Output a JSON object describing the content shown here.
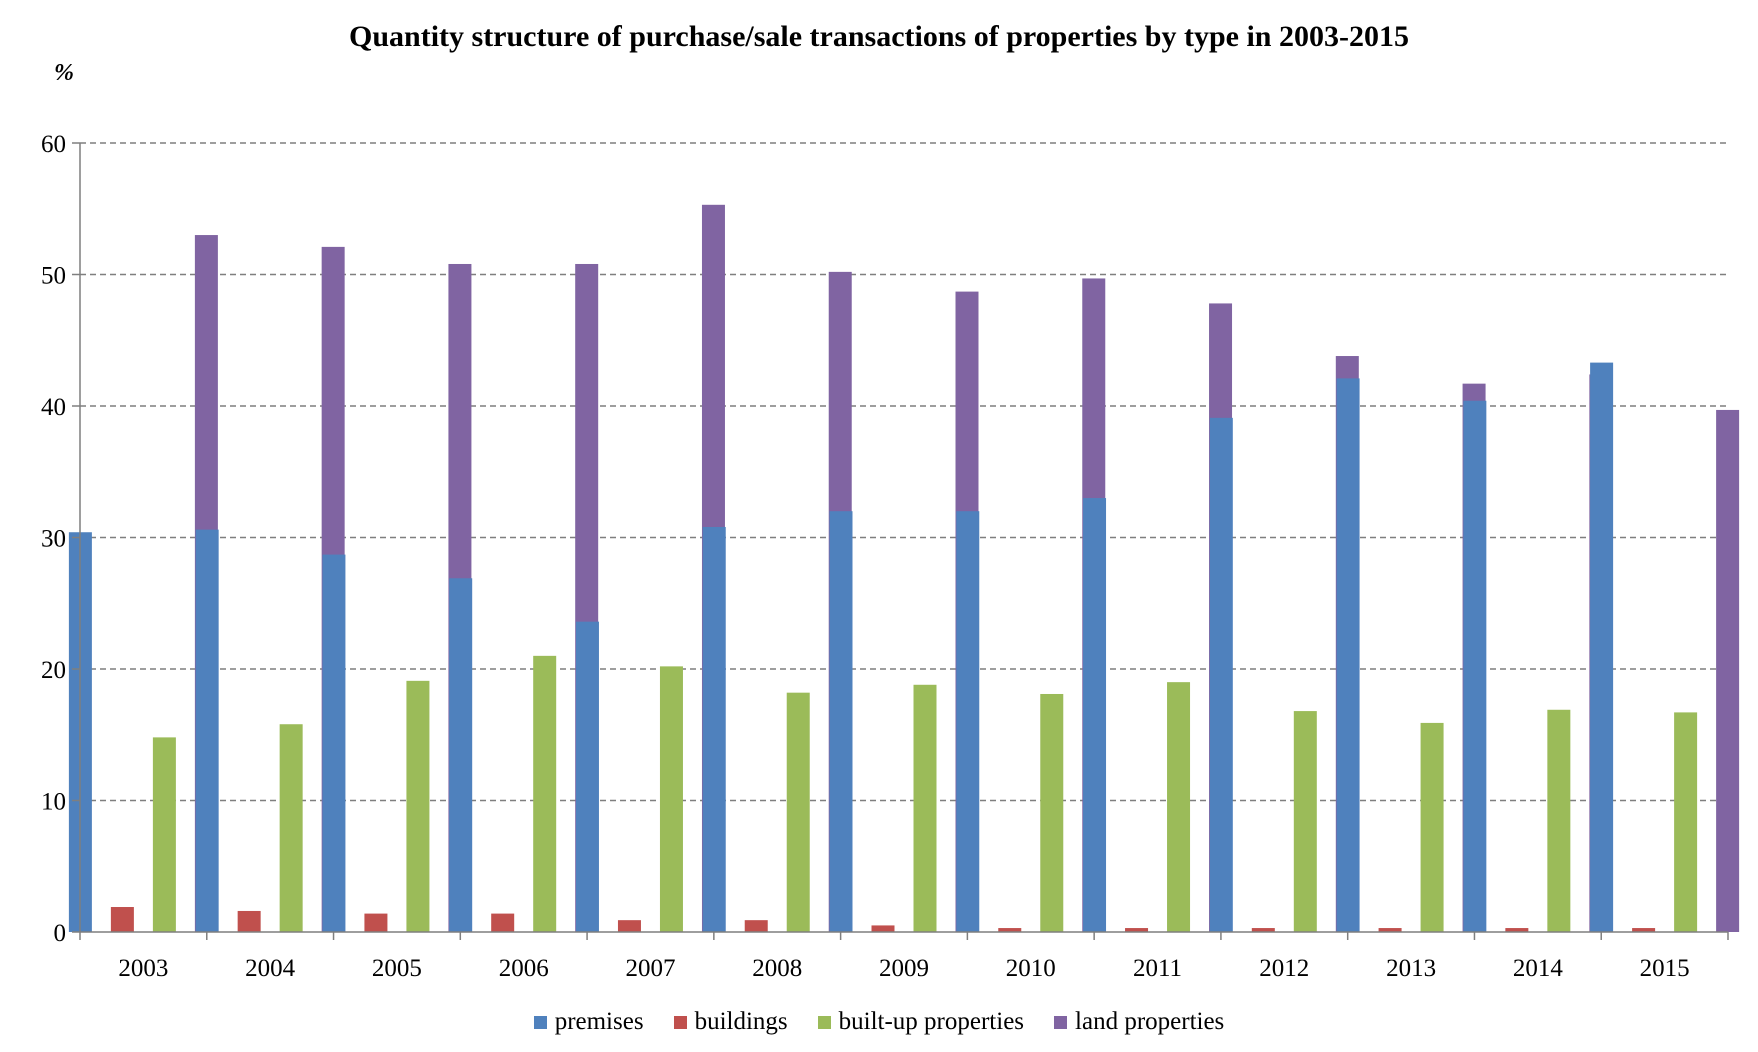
{
  "chart_data": {
    "type": "bar",
    "title": "Quantity structure of purchase/sale transactions of properties by type in 2003-2015",
    "ylabel": "%",
    "xlabel": "",
    "ylim": [
      0,
      60
    ],
    "yticks": [
      0,
      10,
      20,
      30,
      40,
      50,
      60
    ],
    "grid": true,
    "legend_position": "bottom",
    "categories": [
      "2003",
      "2004",
      "2005",
      "2006",
      "2007",
      "2008",
      "2009",
      "2010",
      "2011",
      "2012",
      "2013",
      "2014",
      "2015"
    ],
    "series": [
      {
        "name": "premises",
        "color": "#4f81bd",
        "values": [
          30.4,
          30.6,
          28.7,
          26.9,
          23.6,
          30.8,
          32.0,
          32.0,
          33.0,
          39.1,
          42.1,
          40.4,
          43.3
        ]
      },
      {
        "name": "buildings",
        "color": "#c0504d",
        "values": [
          1.9,
          1.6,
          1.4,
          1.4,
          0.9,
          0.9,
          0.5,
          0.3,
          0.3,
          0.3,
          0.3,
          0.3,
          0.3
        ]
      },
      {
        "name": "built-up properties",
        "color": "#9bbb59",
        "values": [
          14.8,
          15.8,
          19.1,
          21.0,
          20.2,
          18.2,
          18.8,
          18.1,
          19.0,
          16.8,
          15.9,
          16.9,
          16.7
        ]
      },
      {
        "name": "land properties",
        "color": "#8064a2",
        "values": [
          53.0,
          52.1,
          50.8,
          50.8,
          55.3,
          50.2,
          48.7,
          49.7,
          47.8,
          43.8,
          41.7,
          42.4,
          39.7
        ]
      }
    ]
  }
}
